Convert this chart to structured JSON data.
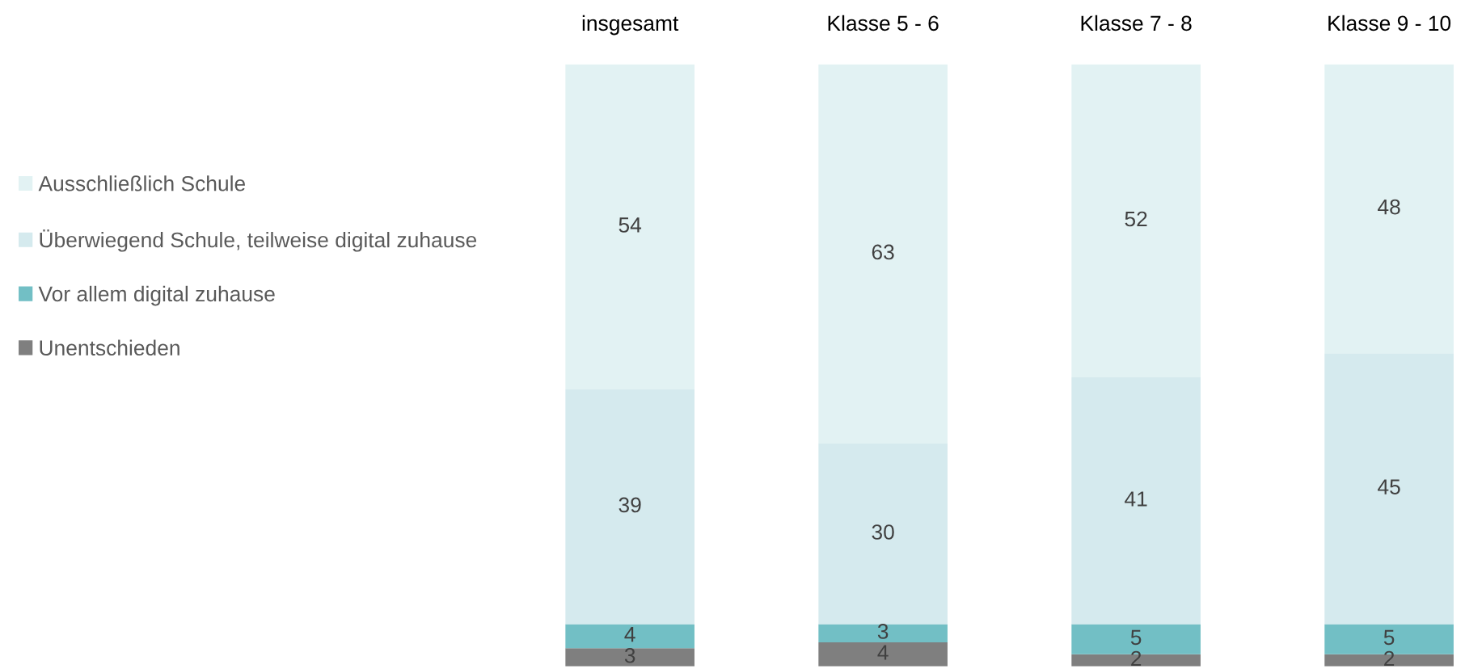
{
  "chart_data": {
    "type": "bar",
    "stacked": true,
    "categories": [
      "insgesamt",
      "Klasse 5 - 6",
      "Klasse 7 - 8",
      "Klasse 9 - 10"
    ],
    "series": [
      {
        "name": "Unentschieden",
        "color": "#7f7f7f",
        "values": [
          3,
          4,
          2,
          2
        ]
      },
      {
        "name": "Vor allem digital zuhause",
        "color": "#72bfc5",
        "values": [
          4,
          3,
          5,
          5
        ]
      },
      {
        "name": "Überwiegend Schule, teilweise digital zuhause",
        "color": "#d5eaee",
        "values": [
          39,
          30,
          41,
          45
        ]
      },
      {
        "name": "Ausschließlich Schule",
        "color": "#e2f2f3",
        "values": [
          54,
          63,
          52,
          48
        ]
      }
    ],
    "ylim": [
      0,
      100
    ],
    "data_labels": true,
    "legend": "left",
    "tick_labels": "x",
    "grid": false
  }
}
